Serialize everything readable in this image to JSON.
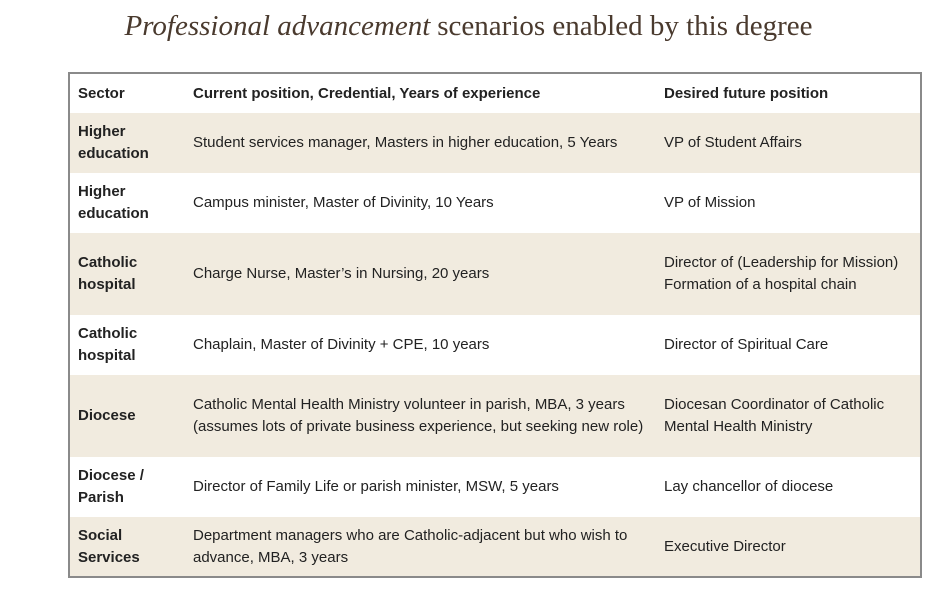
{
  "title": {
    "emphasis": "Professional advancement",
    "rest": "scenarios enabled by this degree"
  },
  "table": {
    "header": [
      "Sector",
      "Current position, Credential, Years of experience",
      "Desired future position"
    ],
    "rows": [
      [
        "Higher education",
        "Student services manager, Masters in higher education, 5 Years",
        "VP of Student Affairs"
      ],
      [
        "Higher education",
        "Campus minister, Master of Divinity, 10 Years",
        "VP of Mission"
      ],
      [
        "Catholic hospital",
        "Charge Nurse, Master’s in Nursing, 20 years",
        "Director of (Leadership for Mission) Formation of a hospital chain"
      ],
      [
        "Catholic hospital",
        "Chaplain, Master of Divinity + CPE, 10 years",
        "Director of Spiritual Care"
      ],
      [
        "Diocese",
        "Catholic Mental Health Ministry volunteer in parish, MBA, 3 years (assumes lots of private business experience, but seeking new role)",
        "Diocesan Coordinator of Catholic Mental Health Ministry"
      ],
      [
        "Diocese / Parish",
        "Director of Family Life or parish minister, MSW, 5 years",
        "Lay chancellor of diocese"
      ],
      [
        "Social Services",
        "Department managers who are Catholic-adjacent but who wish to advance, MBA, 3 years",
        "Executive Director"
      ]
    ]
  }
}
